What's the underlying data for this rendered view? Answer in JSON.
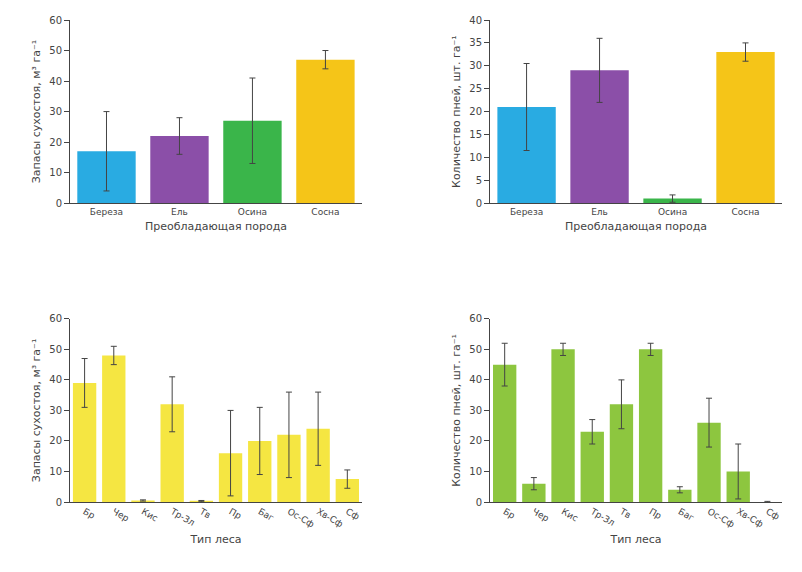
{
  "chart_data": [
    {
      "type": "bar",
      "categories": [
        "Береза",
        "Ель",
        "Осина",
        "Сосна"
      ],
      "values": [
        17,
        22,
        27,
        47
      ],
      "errors": [
        13,
        6,
        14,
        3
      ],
      "colors": [
        "#29abe2",
        "#8b4fa8",
        "#3ab54a",
        "#f5c518"
      ],
      "ylabel": "Запасы сухостоя, м³ га⁻¹",
      "xlabel": "Преобладающая порода",
      "ylim": [
        0,
        60
      ],
      "yticks": [
        0,
        10,
        20,
        30,
        40,
        50,
        60
      ],
      "grid": false
    },
    {
      "type": "bar",
      "categories": [
        "Береза",
        "Ель",
        "Осина",
        "Сосна"
      ],
      "values": [
        21,
        29,
        1,
        33
      ],
      "errors": [
        9.5,
        7,
        0.8,
        2
      ],
      "colors": [
        "#29abe2",
        "#8b4fa8",
        "#3ab54a",
        "#f5c518"
      ],
      "ylabel": "Количество пней, шт. га⁻¹",
      "xlabel": "Преобладающая порода",
      "ylim": [
        0,
        40
      ],
      "yticks": [
        0,
        5,
        10,
        15,
        20,
        25,
        30,
        35,
        40
      ],
      "grid": false
    },
    {
      "type": "bar",
      "categories": [
        "Бр",
        "Чер",
        "Кис",
        "Тр-Зл",
        "Тв",
        "Пр",
        "Баг",
        "Ос-Сф",
        "Хв-Сф",
        "Сф"
      ],
      "values": [
        39,
        48,
        0.5,
        32,
        0.3,
        16,
        20,
        22,
        24,
        7.5
      ],
      "errors": [
        8,
        3,
        0.2,
        9,
        0.2,
        14,
        11,
        14,
        12,
        3
      ],
      "color": "#f5e642",
      "ylabel": "Запасы сухостоя, м³ га⁻¹",
      "xlabel": "Тип леса",
      "ylim": [
        0,
        60
      ],
      "yticks": [
        0,
        10,
        20,
        30,
        40,
        50,
        60
      ],
      "grid": false
    },
    {
      "type": "bar",
      "categories": [
        "Бр",
        "Чер",
        "Кис",
        "Тр-Зл",
        "Тв",
        "Пр",
        "Баг",
        "Ос-Сф",
        "Хв-Сф",
        "Сф"
      ],
      "values": [
        45,
        6,
        50,
        23,
        32,
        50,
        4,
        26,
        10,
        0
      ],
      "errors": [
        7,
        2,
        2,
        4,
        8,
        2,
        1,
        8,
        9,
        0.2
      ],
      "color": "#8dc63f",
      "ylabel": "Количество пней, шт. га⁻¹",
      "xlabel": "Тип леса",
      "ylim": [
        0,
        60
      ],
      "yticks": [
        0,
        10,
        20,
        30,
        40,
        50,
        60
      ],
      "grid": false
    }
  ]
}
